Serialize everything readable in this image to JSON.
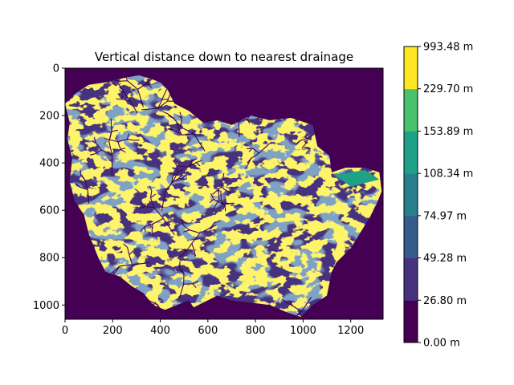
{
  "chart_data": {
    "type": "heatmap",
    "title": "Vertical distance down to nearest drainage",
    "xlabel": "",
    "ylabel": "",
    "xlim": [
      0,
      1336
    ],
    "ylim": [
      1060,
      0
    ],
    "x_ticks": [
      0,
      200,
      400,
      600,
      800,
      1000,
      1200
    ],
    "y_ticks": [
      0,
      200,
      400,
      600,
      800,
      1000
    ],
    "colorbar": {
      "bounds": [
        0.0,
        26.8,
        49.28,
        74.97,
        108.34,
        153.89,
        229.7,
        993.48
      ],
      "labels": [
        "0.00 m",
        "26.80 m",
        "49.28 m",
        "74.97 m",
        "108.34 m",
        "153.89 m",
        "229.70 m",
        "993.48 m"
      ],
      "colors": [
        "#440154",
        "#46327e",
        "#365c8d",
        "#277f8e",
        "#1fa187",
        "#4ac16d",
        "#fde725"
      ]
    },
    "nodata_color": "#440154",
    "description_of_field": "raster of watershed; class values shown by colors"
  }
}
